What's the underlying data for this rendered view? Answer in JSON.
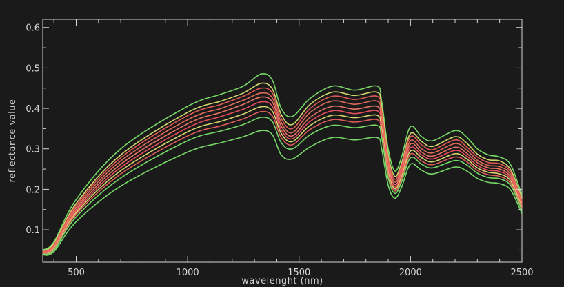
{
  "chart_data": {
    "type": "line",
    "title": "",
    "xlabel": "wavelenght (nm)",
    "ylabel": "reflectance value",
    "xlim": [
      350,
      2500
    ],
    "ylim": [
      0.02,
      0.62
    ],
    "grid": false,
    "legend": "none",
    "x_ticks": [
      500,
      1000,
      1500,
      2000,
      2500
    ],
    "x_tick_labels": [
      "500",
      "1000",
      "1500",
      "2000",
      "2500"
    ],
    "y_ticks": [
      0.1,
      0.2,
      0.3,
      0.4,
      0.5,
      0.6
    ],
    "y_tick_labels": [
      "0.1",
      "0.2",
      "0.3",
      "0.4",
      "0.5",
      "0.6"
    ],
    "x": [
      350,
      400,
      500,
      700,
      1000,
      1150,
      1250,
      1330,
      1380,
      1420,
      1470,
      1550,
      1650,
      1750,
      1850,
      1870,
      1900,
      1930,
      1960,
      2000,
      2050,
      2100,
      2200,
      2250,
      2300,
      2350,
      2400,
      2450,
      2500
    ],
    "series": [
      {
        "color": "#7be06a",
        "values": [
          0.05,
          0.07,
          0.175,
          0.3,
          0.405,
          0.435,
          0.455,
          0.485,
          0.47,
          0.4,
          0.38,
          0.425,
          0.455,
          0.445,
          0.455,
          0.42,
          0.3,
          0.245,
          0.28,
          0.355,
          0.33,
          0.32,
          0.345,
          0.33,
          0.3,
          0.285,
          0.28,
          0.26,
          0.185
        ]
      },
      {
        "color": "#d8e070",
        "values": [
          0.048,
          0.066,
          0.165,
          0.285,
          0.39,
          0.418,
          0.438,
          0.462,
          0.448,
          0.385,
          0.36,
          0.41,
          0.44,
          0.432,
          0.44,
          0.405,
          0.285,
          0.232,
          0.265,
          0.338,
          0.318,
          0.306,
          0.33,
          0.315,
          0.287,
          0.273,
          0.27,
          0.248,
          0.178
        ]
      },
      {
        "color": "#e85c58",
        "values": [
          0.046,
          0.063,
          0.16,
          0.278,
          0.382,
          0.41,
          0.43,
          0.45,
          0.438,
          0.375,
          0.35,
          0.4,
          0.43,
          0.422,
          0.43,
          0.395,
          0.275,
          0.225,
          0.258,
          0.33,
          0.31,
          0.298,
          0.322,
          0.306,
          0.28,
          0.266,
          0.263,
          0.242,
          0.172
        ]
      },
      {
        "color": "#e8705e",
        "values": [
          0.045,
          0.06,
          0.155,
          0.27,
          0.372,
          0.4,
          0.42,
          0.438,
          0.426,
          0.365,
          0.34,
          0.39,
          0.418,
          0.41,
          0.418,
          0.383,
          0.266,
          0.218,
          0.25,
          0.32,
          0.3,
          0.29,
          0.313,
          0.298,
          0.272,
          0.259,
          0.256,
          0.236,
          0.168
        ]
      },
      {
        "color": "#f07a6a",
        "values": [
          0.044,
          0.058,
          0.15,
          0.262,
          0.362,
          0.39,
          0.41,
          0.428,
          0.416,
          0.356,
          0.332,
          0.378,
          0.405,
          0.398,
          0.405,
          0.372,
          0.258,
          0.212,
          0.243,
          0.312,
          0.292,
          0.282,
          0.304,
          0.29,
          0.266,
          0.253,
          0.25,
          0.23,
          0.164
        ]
      },
      {
        "color": "#ee5060",
        "values": [
          0.043,
          0.056,
          0.146,
          0.254,
          0.352,
          0.38,
          0.398,
          0.416,
          0.405,
          0.347,
          0.325,
          0.368,
          0.394,
          0.387,
          0.394,
          0.362,
          0.25,
          0.206,
          0.237,
          0.303,
          0.285,
          0.275,
          0.296,
          0.283,
          0.259,
          0.247,
          0.244,
          0.225,
          0.16
        ]
      },
      {
        "color": "#dfe070",
        "values": [
          0.042,
          0.054,
          0.142,
          0.246,
          0.342,
          0.368,
          0.386,
          0.404,
          0.393,
          0.338,
          0.318,
          0.358,
          0.383,
          0.377,
          0.383,
          0.352,
          0.243,
          0.201,
          0.231,
          0.295,
          0.278,
          0.268,
          0.288,
          0.276,
          0.253,
          0.242,
          0.238,
          0.22,
          0.156
        ]
      },
      {
        "color": "#ea6060",
        "values": [
          0.041,
          0.052,
          0.138,
          0.238,
          0.332,
          0.357,
          0.374,
          0.392,
          0.381,
          0.328,
          0.31,
          0.348,
          0.372,
          0.366,
          0.372,
          0.343,
          0.237,
          0.196,
          0.225,
          0.287,
          0.27,
          0.261,
          0.28,
          0.269,
          0.247,
          0.236,
          0.232,
          0.214,
          0.152
        ]
      },
      {
        "color": "#7be06a",
        "values": [
          0.04,
          0.05,
          0.132,
          0.228,
          0.32,
          0.344,
          0.36,
          0.378,
          0.367,
          0.315,
          0.3,
          0.335,
          0.358,
          0.352,
          0.358,
          0.33,
          0.228,
          0.19,
          0.218,
          0.278,
          0.262,
          0.253,
          0.271,
          0.261,
          0.24,
          0.229,
          0.226,
          0.209,
          0.148
        ]
      },
      {
        "color": "#7be06a",
        "values": [
          0.038,
          0.046,
          0.12,
          0.208,
          0.292,
          0.315,
          0.33,
          0.345,
          0.335,
          0.285,
          0.275,
          0.305,
          0.328,
          0.322,
          0.328,
          0.302,
          0.21,
          0.178,
          0.205,
          0.262,
          0.247,
          0.238,
          0.255,
          0.246,
          0.227,
          0.217,
          0.214,
          0.198,
          0.14
        ]
      }
    ]
  }
}
